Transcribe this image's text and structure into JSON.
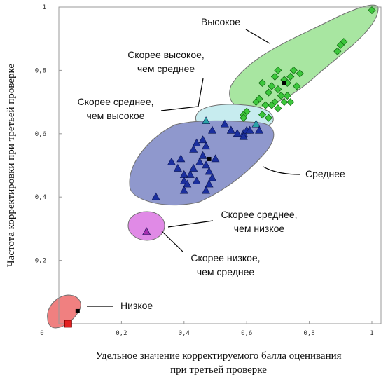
{
  "chart_data": {
    "type": "scatter",
    "xlabel_lines": [
      "Удельное значение корректируемого балла оценивания",
      "при третьей проверке"
    ],
    "ylabel": "Частота корректировки при третьей проверке",
    "xlim": [
      0,
      1
    ],
    "ylim": [
      0,
      1
    ],
    "x_ticks": [
      {
        "v": 0,
        "label": "0"
      },
      {
        "v": 0.2,
        "label": "0,2"
      },
      {
        "v": 0.4,
        "label": "0,4"
      },
      {
        "v": 0.6,
        "label": "0,6"
      },
      {
        "v": 0.8,
        "label": "0,8"
      },
      {
        "v": 1,
        "label": "1"
      }
    ],
    "y_ticks": [
      {
        "v": 0.2,
        "label": "0,2"
      },
      {
        "v": 0.4,
        "label": "0,4"
      },
      {
        "v": 0.6,
        "label": "0,6"
      },
      {
        "v": 0.8,
        "label": "0,8"
      },
      {
        "v": 1,
        "label": "1"
      }
    ],
    "origin_label": "0",
    "grid": false,
    "series": [
      {
        "name": "Высокое",
        "marker": "diamond",
        "color": "#3cc73c",
        "region_fill": "#a8e6a1",
        "points": [
          [
            1.0,
            0.99
          ],
          [
            0.91,
            0.89
          ],
          [
            0.9,
            0.88
          ],
          [
            0.89,
            0.86
          ],
          [
            0.7,
            0.8
          ],
          [
            0.75,
            0.8
          ],
          [
            0.77,
            0.79
          ],
          [
            0.69,
            0.78
          ],
          [
            0.74,
            0.78
          ],
          [
            0.72,
            0.77
          ],
          [
            0.65,
            0.76
          ],
          [
            0.68,
            0.75
          ],
          [
            0.73,
            0.76
          ],
          [
            0.76,
            0.75
          ],
          [
            0.7,
            0.74
          ],
          [
            0.67,
            0.73
          ],
          [
            0.71,
            0.72
          ],
          [
            0.73,
            0.72
          ],
          [
            0.64,
            0.71
          ],
          [
            0.69,
            0.7
          ],
          [
            0.63,
            0.7
          ],
          [
            0.72,
            0.7
          ],
          [
            0.74,
            0.7
          ],
          [
            0.66,
            0.69
          ],
          [
            0.68,
            0.69
          ],
          [
            0.7,
            0.68
          ],
          [
            0.6,
            0.67
          ],
          [
            0.65,
            0.66
          ],
          [
            0.59,
            0.66
          ],
          [
            0.59,
            0.65
          ],
          [
            0.67,
            0.65
          ]
        ],
        "centroid": [
          0.72,
          0.76
        ]
      },
      {
        "name": "Скорее высокое, чем среднее",
        "marker": "triangle",
        "color": "#2aa3a6",
        "region_fill": "#c7ecef",
        "points": [
          [
            0.47,
            0.64
          ],
          [
            0.63,
            0.63
          ]
        ],
        "centroid": null
      },
      {
        "name": "Среднее",
        "marker": "triangle",
        "color": "#1b2f9e",
        "region_fill": "#8f98cd",
        "points": [
          [
            0.49,
            0.61
          ],
          [
            0.53,
            0.63
          ],
          [
            0.55,
            0.61
          ],
          [
            0.57,
            0.6
          ],
          [
            0.59,
            0.6
          ],
          [
            0.6,
            0.61
          ],
          [
            0.61,
            0.61
          ],
          [
            0.64,
            0.61
          ],
          [
            0.59,
            0.59
          ],
          [
            0.46,
            0.58
          ],
          [
            0.44,
            0.57
          ],
          [
            0.47,
            0.56
          ],
          [
            0.43,
            0.55
          ],
          [
            0.46,
            0.53
          ],
          [
            0.5,
            0.52
          ],
          [
            0.39,
            0.52
          ],
          [
            0.45,
            0.51
          ],
          [
            0.36,
            0.51
          ],
          [
            0.47,
            0.5
          ],
          [
            0.38,
            0.49
          ],
          [
            0.48,
            0.48
          ],
          [
            0.43,
            0.49
          ],
          [
            0.4,
            0.47
          ],
          [
            0.42,
            0.47
          ],
          [
            0.49,
            0.46
          ],
          [
            0.44,
            0.45
          ],
          [
            0.4,
            0.45
          ],
          [
            0.41,
            0.44
          ],
          [
            0.48,
            0.44
          ],
          [
            0.47,
            0.42
          ],
          [
            0.4,
            0.42
          ],
          [
            0.31,
            0.4
          ],
          [
            0.55,
            0.61
          ]
        ],
        "centroid": [
          0.48,
          0.52
        ]
      },
      {
        "name": "Скорее среднее, чем высокое",
        "marker": "none",
        "color": "#2aa3a6",
        "region_fill": null,
        "points": [],
        "centroid": null
      },
      {
        "name": "Скорее среднее, чем низкое",
        "marker": "triangle",
        "color": "#a62fb0",
        "region_fill": "#e08ae6",
        "points": [
          [
            0.28,
            0.29
          ]
        ],
        "centroid": null
      },
      {
        "name": "Скорее низкое, чем среднее",
        "marker": "none",
        "color": "#a62fb0",
        "region_fill": null,
        "points": [],
        "centroid": null
      },
      {
        "name": "Низкое",
        "marker": "square",
        "color": "#e32020",
        "region_fill": "#f08080",
        "points": [
          [
            0.03,
            0.0
          ]
        ],
        "centroid": [
          0.06,
          0.04
        ]
      }
    ],
    "annotations": [
      {
        "text_lines": [
          "Высокое"
        ]
      },
      {
        "text_lines": [
          "Скорее высокое,",
          "чем среднее"
        ]
      },
      {
        "text_lines": [
          "Скорее среднее,",
          "чем высокое"
        ]
      },
      {
        "text_lines": [
          "Среднее"
        ]
      },
      {
        "text_lines": [
          "Скорее среднее,",
          "чем низкое"
        ]
      },
      {
        "text_lines": [
          "Скорее низкое,",
          "чем среднее"
        ]
      },
      {
        "text_lines": [
          "Низкое"
        ]
      }
    ]
  }
}
